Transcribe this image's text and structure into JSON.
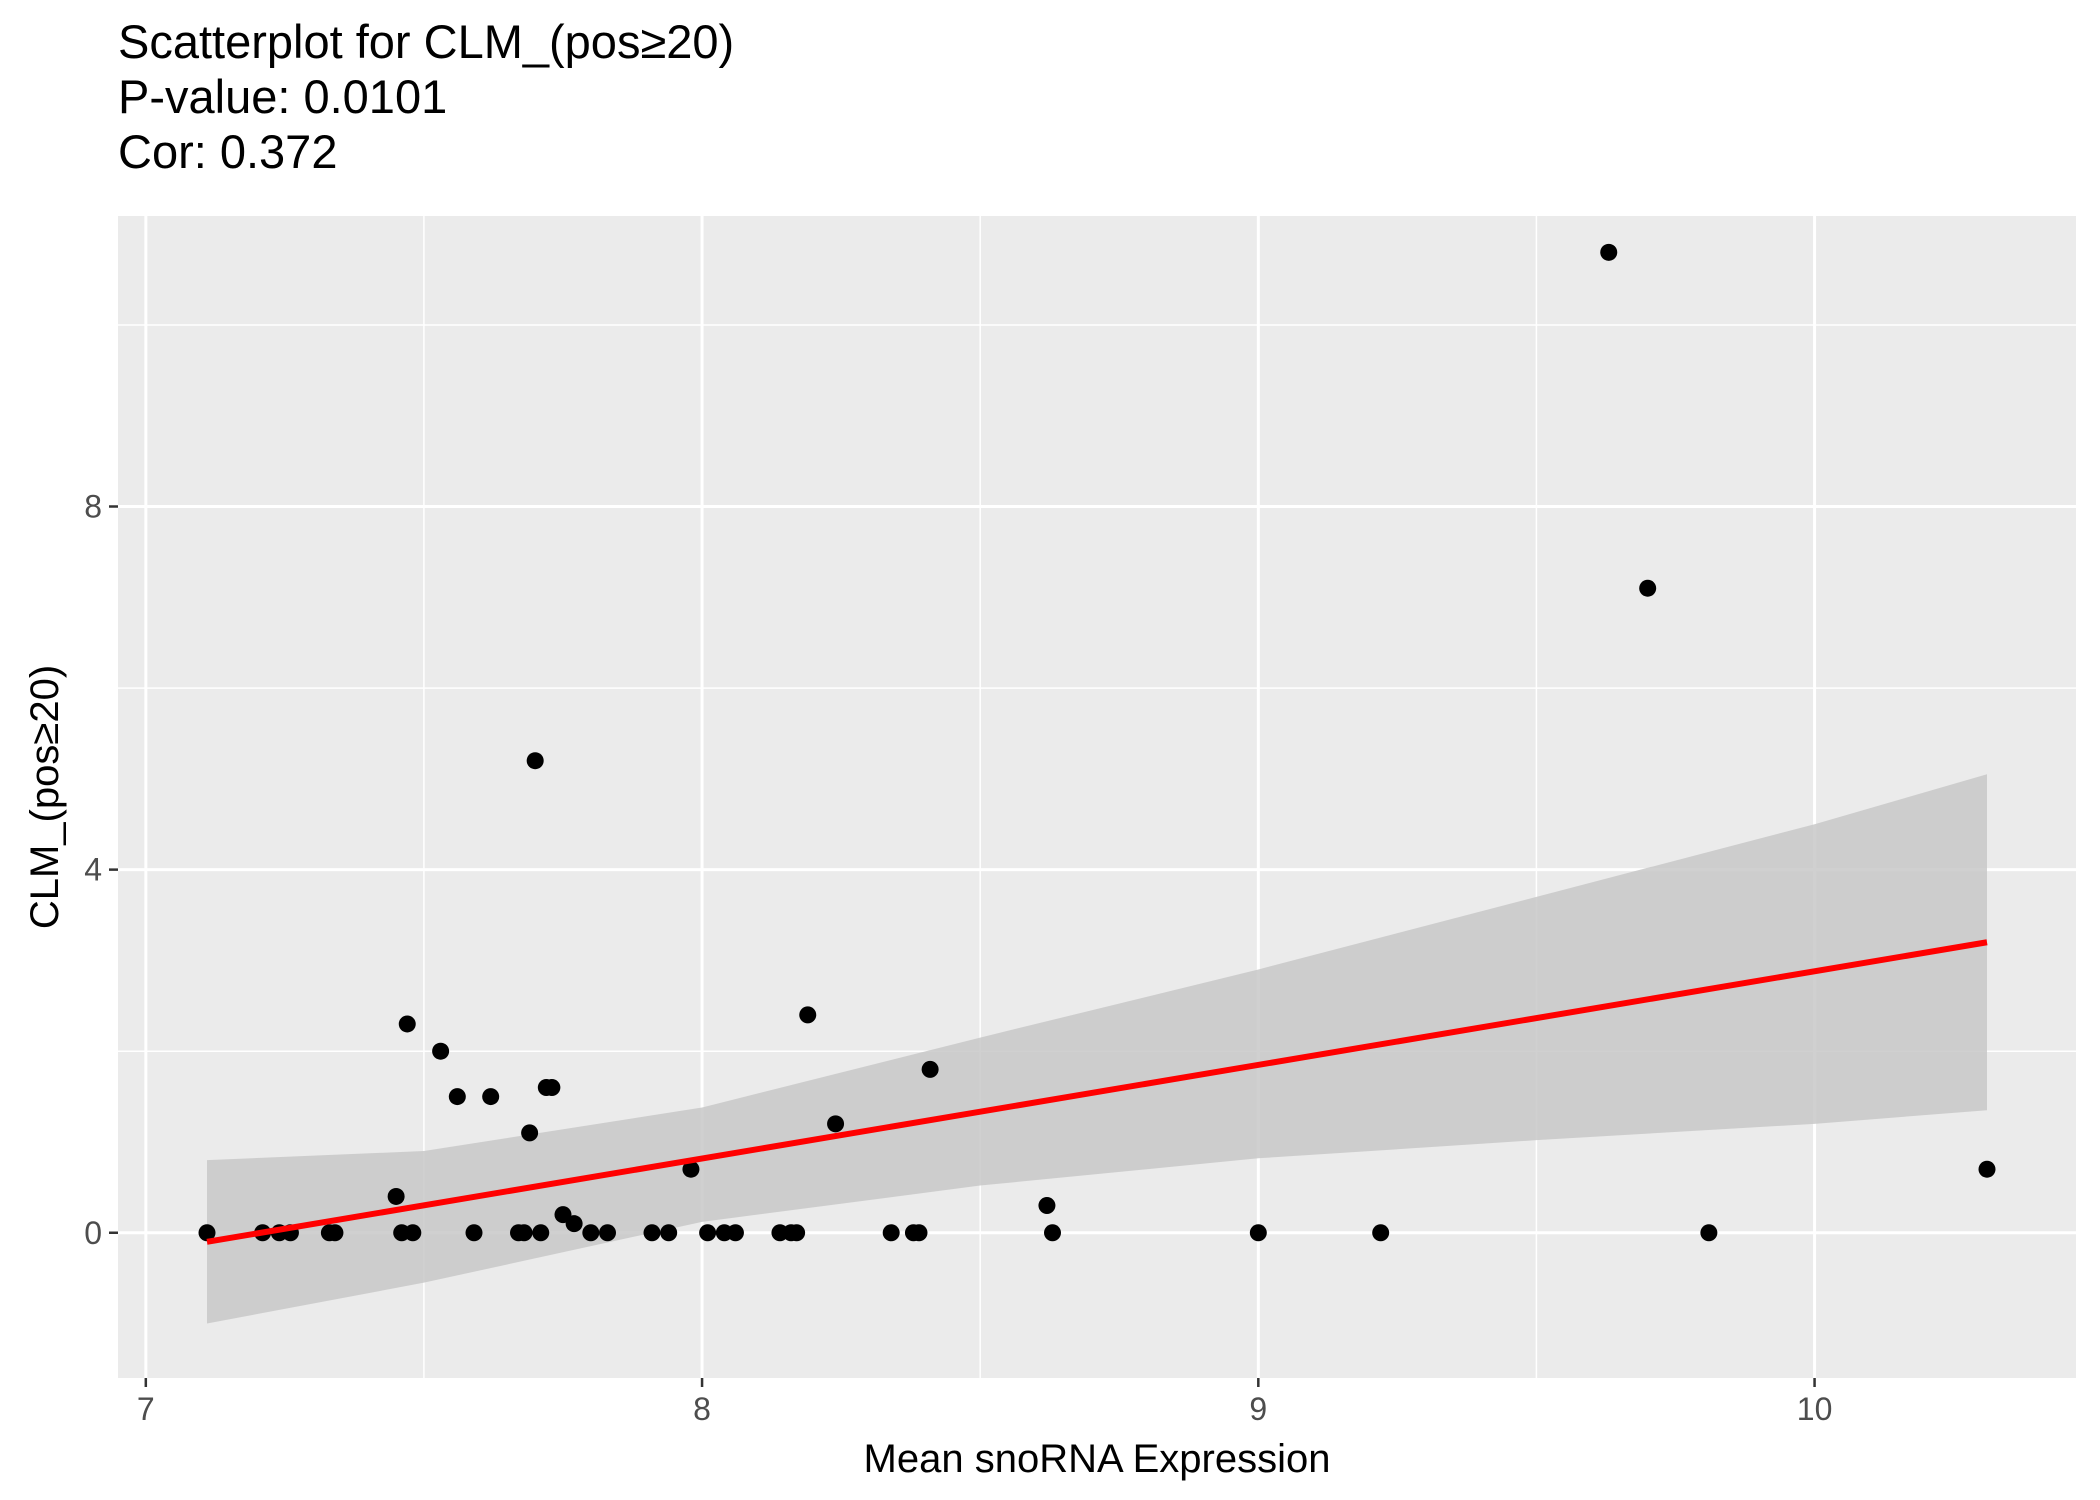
{
  "chart_data": {
    "type": "scatter",
    "title": "Scatterplot for CLM_(pos≥20)",
    "subtitle_lines": [
      "P-value: 0.0101",
      "Cor: 0.372"
    ],
    "xlabel": "Mean snoRNA Expression",
    "ylabel": "CLM_(pos≥20)",
    "xlim": [
      6.95,
      10.47
    ],
    "ylim": [
      -1.6,
      11.2
    ],
    "x_ticks": [
      7,
      8,
      9,
      10
    ],
    "x_tick_labels": [
      "7",
      "8",
      "9",
      "10"
    ],
    "y_ticks": [
      0,
      4,
      8
    ],
    "y_tick_labels": [
      "0",
      "4",
      "8"
    ],
    "x_minor_ticks": [
      7.5,
      8.5,
      9.5
    ],
    "y_minor_ticks": [
      2,
      6,
      10
    ],
    "grid": true,
    "points": {
      "x": [
        7.11,
        7.21,
        7.24,
        7.26,
        7.33,
        7.34,
        7.45,
        7.46,
        7.47,
        7.48,
        7.53,
        7.56,
        7.59,
        7.62,
        7.67,
        7.68,
        7.69,
        7.7,
        7.71,
        7.72,
        7.73,
        7.75,
        7.77,
        7.8,
        7.83,
        7.91,
        7.94,
        7.98,
        8.01,
        8.04,
        8.06,
        8.14,
        8.16,
        8.17,
        8.19,
        8.24,
        8.34,
        8.38,
        8.39,
        8.41,
        8.62,
        8.63,
        9.0,
        9.22,
        9.63,
        9.7,
        9.81,
        10.31
      ],
      "y": [
        0,
        0,
        0,
        0,
        0,
        0,
        0.4,
        0,
        2.3,
        0,
        2.0,
        1.5,
        0,
        1.5,
        0,
        0,
        1.1,
        5.2,
        0,
        1.6,
        1.6,
        0.2,
        0.1,
        0,
        0,
        0,
        0,
        0.7,
        0,
        0,
        0,
        0,
        0,
        0,
        2.4,
        1.2,
        0,
        0,
        0,
        1.8,
        0.3,
        0,
        0,
        0,
        10.8,
        7.1,
        0,
        0.7
      ]
    },
    "fit_line": {
      "x": [
        7.11,
        10.31
      ],
      "y": [
        -0.1,
        3.2
      ],
      "color": "#ff0000"
    },
    "confidence_band": {
      "x": [
        7.11,
        7.5,
        8.0,
        8.5,
        9.0,
        9.5,
        10.0,
        10.31
      ],
      "lower": [
        -1.0,
        -0.55,
        0.12,
        0.52,
        0.82,
        1.02,
        1.2,
        1.35
      ],
      "upper": [
        0.8,
        0.9,
        1.38,
        2.15,
        2.9,
        3.7,
        4.5,
        5.05
      ]
    },
    "colors": {
      "panel": "#ebebeb",
      "grid": "#ffffff",
      "band": "#c8c8c8",
      "point": "#000000"
    }
  }
}
